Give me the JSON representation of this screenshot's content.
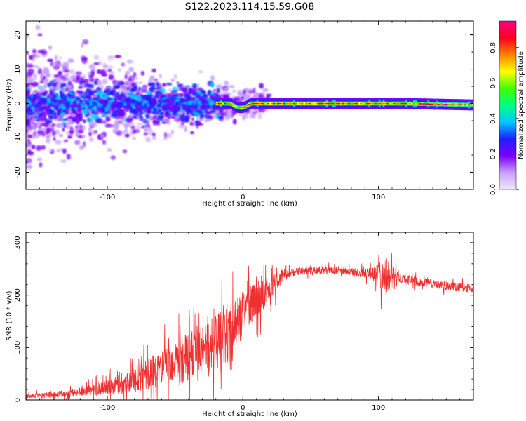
{
  "figure_title": "S122.2023.114.15.59.G08",
  "chart_data": [
    {
      "type": "heatmap",
      "title": "",
      "xlabel": "Height of straight line (km)",
      "ylabel": "Frequency (Hz)",
      "xlim": [
        -160,
        170
      ],
      "ylim": [
        -25,
        24
      ],
      "x_ticks": [
        "-100",
        "0",
        "100"
      ],
      "y_ticks": [
        "-20",
        "-10",
        "0",
        "10",
        "20"
      ],
      "colorbar": {
        "label": "Normalized spectral amplitude",
        "range": [
          0,
          0.95
        ],
        "ticks": [
          "0.0",
          "0.2",
          "0.4",
          "0.6",
          "0.8"
        ],
        "colormap": [
          "#f0e6ff",
          "#c8a0ff",
          "#7a00ff",
          "#2020ff",
          "#00c8ff",
          "#00ff80",
          "#40ff00",
          "#ffff00",
          "#ff8000",
          "#ff0020",
          "#ff0080"
        ]
      },
      "features": [
        {
          "x_range": [
            -160,
            -20
          ],
          "freq_center": 0,
          "freq_spread": 24,
          "amplitude": 0.2
        },
        {
          "x_range": [
            -20,
            170
          ],
          "freq_center": 0,
          "freq_spread": 1.5,
          "amplitude": 0.85
        }
      ]
    },
    {
      "type": "line",
      "title": "",
      "xlabel": "Height of straight line (km)",
      "ylabel": "SNR (10 * v/v)",
      "xlim": [
        -160,
        170
      ],
      "ylim": [
        0,
        320
      ],
      "x_ticks": [
        "-100",
        "0",
        "100"
      ],
      "y_ticks": [
        "0",
        "100",
        "200",
        "300"
      ],
      "series": [
        {
          "color": "#f03030",
          "envelope_x": [
            -160,
            -140,
            -120,
            -100,
            -80,
            -60,
            -40,
            -20,
            -10,
            0,
            10,
            20,
            30,
            40,
            60,
            80,
            95,
            105,
            115,
            130,
            150,
            170
          ],
          "envelope_mean": [
            8,
            10,
            15,
            25,
            40,
            60,
            80,
            110,
            120,
            165,
            190,
            210,
            240,
            245,
            248,
            245,
            240,
            235,
            232,
            225,
            218,
            212
          ],
          "envelope_spread": [
            6,
            8,
            12,
            20,
            35,
            50,
            70,
            90,
            100,
            60,
            50,
            35,
            15,
            10,
            10,
            10,
            15,
            60,
            15,
            12,
            12,
            12
          ]
        }
      ]
    }
  ]
}
